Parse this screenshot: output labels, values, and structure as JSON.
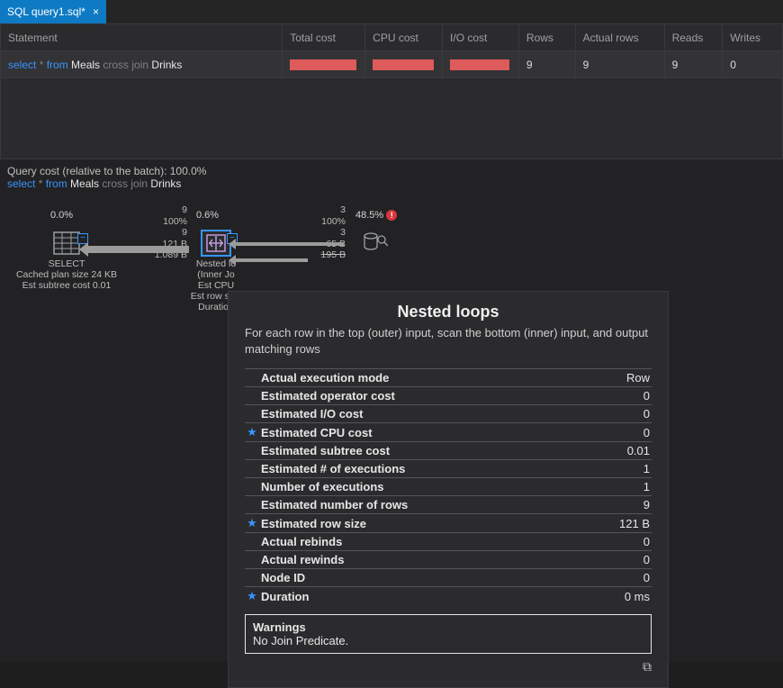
{
  "tab": {
    "title": "SQL query1.sql*"
  },
  "grid": {
    "headers": {
      "statement": "Statement",
      "total_cost": "Total cost",
      "cpu_cost": "CPU cost",
      "io_cost": "I/O cost",
      "rows": "Rows",
      "actual_rows": "Actual rows",
      "reads": "Reads",
      "writes": "Writes"
    },
    "row": {
      "sql": {
        "kw1": "select",
        "star": " * ",
        "kw2": "from",
        "t1": " Meals ",
        "kw3": "cross join",
        "t2": " Drinks"
      },
      "rows": "9",
      "actual_rows": "9",
      "reads": "9",
      "writes": "0",
      "bar_color": "#de5b5b",
      "bar_total_w": 74,
      "bar_cpu_w": 68,
      "bar_io_w": 66
    }
  },
  "plan": {
    "cost_line": "Query cost (relative to the batch):  100.0%",
    "sql": {
      "kw1": "select",
      "star": " * ",
      "kw2": "from",
      "t1": " Meals ",
      "kw3": "cross join",
      "t2": " Drinks"
    },
    "select_node": {
      "pct": "0.0%",
      "title": "SELECT",
      "l1": "Cached plan size  24 KB",
      "l2": "Est subtree cost  0.01"
    },
    "nested_node": {
      "pct": "0.6%",
      "stats": [
        "9",
        "100%",
        "9",
        "121 B",
        "1.089 B"
      ],
      "title": "Nested lo",
      "l1": "(Inner Jo",
      "l2": "Est CPU",
      "l3": "Est row size",
      "l4": "Duration"
    },
    "scan_node": {
      "pct": "48.5%",
      "stats": [
        "3",
        "100%",
        "3",
        "65 B",
        "195 B"
      ]
    }
  },
  "tooltip": {
    "title": "Nested loops",
    "desc": "For each row in the top (outer) input, scan the bottom (inner) input, and output matching rows",
    "rows": [
      {
        "star": false,
        "label": "Actual execution mode",
        "value": "Row"
      },
      {
        "star": false,
        "label": "Estimated operator cost",
        "value": "0"
      },
      {
        "star": false,
        "label": "Estimated I/O cost",
        "value": "0"
      },
      {
        "star": true,
        "label": "Estimated CPU cost",
        "value": "0"
      },
      {
        "star": false,
        "label": "Estimated subtree cost",
        "value": "0.01"
      },
      {
        "star": false,
        "label": "Estimated # of executions",
        "value": "1"
      },
      {
        "star": false,
        "label": "Number of executions",
        "value": "1"
      },
      {
        "star": false,
        "label": "Estimated number of rows",
        "value": "9"
      },
      {
        "star": true,
        "label": "Estimated row size",
        "value": "121 B"
      },
      {
        "star": false,
        "label": "Actual rebinds",
        "value": "0"
      },
      {
        "star": false,
        "label": "Actual rewinds",
        "value": "0"
      },
      {
        "star": false,
        "label": "Node ID",
        "value": "0"
      },
      {
        "star": true,
        "label": "Duration",
        "value": "0 ms"
      }
    ],
    "warn_title": "Warnings",
    "warn_text": "No Join Predicate."
  },
  "colors": {
    "tab_bg": "#0e7ac4",
    "accent_blue": "#3794ff",
    "bar": "#de5b5b",
    "warn": "#d9363e"
  }
}
